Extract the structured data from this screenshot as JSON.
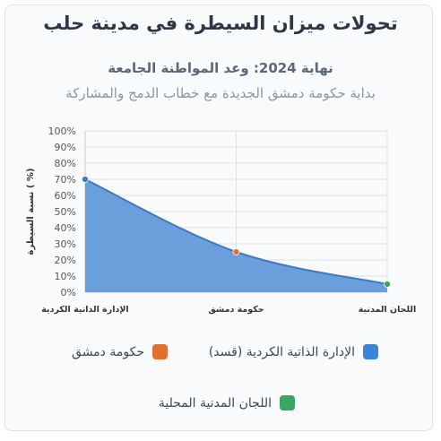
{
  "header": {
    "title": "تحولات ميزان السيطرة في مدينة حلب",
    "subtitle": "نهاية 2024: وعد المواطنة الجامعة",
    "subtitle2": "بداية حكومة دمشق الجديدة مع خطاب الدمج والمشاركة"
  },
  "chart_data": {
    "type": "area",
    "categories": [
      "الإدارة الذاتية الكردية",
      "حكومة دمشق",
      "اللجان المدنية"
    ],
    "values": [
      70,
      25,
      5
    ],
    "ylabel": "نسبة السيطرة ( %)",
    "ylim": [
      0,
      100
    ],
    "yticks": [
      "0%",
      "10%",
      "20%",
      "30%",
      "40%",
      "50%",
      "60%",
      "70%",
      "80%",
      "90%",
      "100%"
    ],
    "grid": true,
    "colors": {
      "area_fill": "#6a9fdc",
      "area_line": "#3a7bc8",
      "points": [
        "#3a7bc8",
        "#e07030",
        "#3aa55a"
      ]
    },
    "legend": [
      {
        "label": "الإدارة الذاتية الكردية (قسد)",
        "color": "#3a86d4"
      },
      {
        "label": "حكومة دمشق",
        "color": "#e07030"
      },
      {
        "label": "اللجان المدنية المحلية",
        "color": "#3aa566"
      }
    ]
  }
}
